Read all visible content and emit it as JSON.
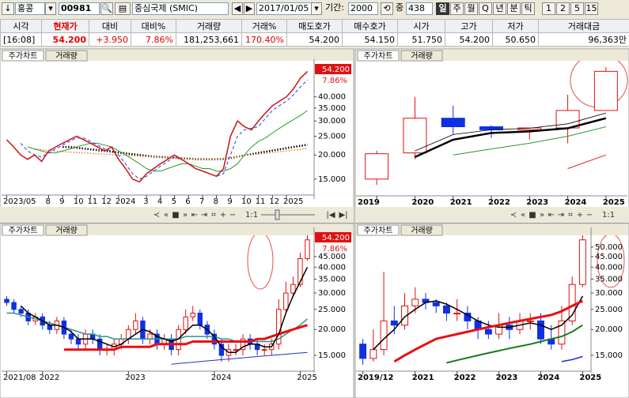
{
  "toolbar": {
    "market": "홍콩",
    "code": "00981",
    "name": "중심국제 (SMIC)",
    "date": "2017/01/05",
    "period_label": "기간:",
    "period": "2000",
    "zoom_label": "중",
    "zoom": "438",
    "intervals": [
      "일",
      "주",
      "월",
      "Q",
      "년",
      "분",
      "틱",
      "1",
      "2",
      "5",
      "15"
    ]
  },
  "quote": {
    "headers": [
      "시각",
      "현재가",
      "대비",
      "대비%",
      "거래량",
      "거래%",
      "매도호가",
      "매수호가",
      "시가",
      "고가",
      "저가",
      "거래대금"
    ],
    "values": [
      "[16:08]",
      "54.200",
      "+3.950",
      "7.86%",
      "181,253,661",
      "170.40%",
      "54.200",
      "54.150",
      "51.750",
      "54.200",
      "50.650",
      "96,363만"
    ]
  },
  "panels": [
    {
      "tabs": [
        "주가차트",
        "거래량"
      ],
      "scale_label": "1:1"
    },
    {
      "tabs": [
        "주가차트",
        "거래량"
      ],
      "scale_label": "1:1"
    },
    {
      "tabs": [
        "주가차트",
        "거래량"
      ]
    },
    {
      "tabs": [
        "주가차트",
        "거래량"
      ]
    }
  ],
  "chart_data": [
    {
      "type": "line",
      "log": true,
      "annotations": [
        "54.200",
        "7.86%"
      ],
      "categories": [
        "2023/05",
        null,
        null,
        null,
        null,
        null,
        "8",
        null,
        "9",
        null,
        "10",
        null,
        "11",
        null,
        "12",
        null,
        "2024",
        null,
        null,
        null,
        "3",
        null,
        "4",
        null,
        "5",
        null,
        "6",
        null,
        "7",
        null,
        "8",
        null,
        "9",
        null,
        "10",
        null,
        "11",
        null,
        "12",
        null,
        "2025",
        null,
        null,
        null
      ],
      "ylim": [
        13,
        57
      ],
      "yticks": [
        {
          "value": 15,
          "label": "15.000"
        },
        {
          "value": 20,
          "label": "20.000"
        },
        {
          "value": 25,
          "label": "25.000"
        },
        {
          "value": 30,
          "label": "30.000"
        },
        {
          "value": 35,
          "label": "35.000"
        },
        {
          "value": 40,
          "label": "40.000"
        }
      ],
      "series": [
        {
          "color": "#000000",
          "style": "dot",
          "width": 2.5,
          "values": [
            null,
            null,
            null,
            null,
            null,
            null,
            null,
            null,
            22,
            22,
            21.8,
            21.6,
            21.4,
            21.2,
            21,
            20.8,
            20.6,
            20.4,
            20.2,
            20,
            19.8,
            19.6,
            19.5,
            19.4,
            19.3,
            19.2,
            19.1,
            19,
            19,
            19,
            19,
            19.1,
            19.3,
            19.6,
            19.9,
            20.2,
            20.5,
            20.8,
            21.1,
            21.4,
            21.7,
            22,
            22.3,
            22.6
          ]
        },
        {
          "color": "#f08020",
          "style": "dot",
          "width": 1.5,
          "values": [
            null,
            null,
            null,
            null,
            21.5,
            21.3,
            21.1,
            20.9,
            20.8,
            20.7,
            20.6,
            20.5,
            20.4,
            20.3,
            20.2,
            20.1,
            20,
            19.9,
            19.8,
            19.7,
            19.6,
            19.5,
            19.4,
            19.3,
            19.2,
            19.1,
            19,
            19,
            19,
            19,
            19,
            19.2,
            19.4,
            19.6,
            19.8,
            20,
            20.2,
            20.4,
            20.6,
            20.8,
            21,
            21.2,
            21.4,
            21.6
          ]
        },
        {
          "color": "#2a9a2a",
          "style": "solid",
          "width": 1,
          "values": [
            null,
            null,
            null,
            22,
            21.5,
            21,
            20.5,
            20.5,
            21,
            21.5,
            22,
            22.5,
            23,
            23,
            22.5,
            22,
            21,
            20,
            19,
            18,
            17,
            16.5,
            16.5,
            17,
            17.5,
            18,
            18,
            17.5,
            17,
            17,
            16.5,
            16.5,
            17,
            18,
            20,
            22,
            23.5,
            24.5,
            26,
            27.5,
            29,
            30.5,
            32,
            34
          ]
        },
        {
          "color": "#2040e0",
          "style": "dash",
          "width": 1,
          "values": [
            null,
            null,
            23,
            21,
            20,
            19.5,
            20.5,
            21.5,
            22.5,
            23.5,
            24.5,
            24.5,
            23.5,
            22.5,
            21.5,
            21,
            20,
            18,
            16,
            15,
            15.5,
            16.5,
            17.5,
            18.5,
            19.5,
            19,
            18,
            17,
            16.5,
            16,
            15.5,
            16,
            20,
            25,
            27,
            27.5,
            28,
            31,
            34,
            36,
            38,
            41,
            45,
            49
          ]
        },
        {
          "color": "#d01010",
          "style": "solid",
          "width": 1.5,
          "values": [
            24,
            22,
            20,
            19,
            20,
            18.5,
            21,
            22,
            23,
            24,
            25,
            24,
            23,
            22,
            21,
            22,
            19,
            17,
            15,
            14.5,
            16,
            17,
            18,
            19,
            20,
            19,
            18,
            17,
            16.5,
            16,
            15.5,
            17,
            25,
            30,
            28,
            27,
            30,
            33,
            36,
            38,
            40,
            44,
            50,
            54.2
          ]
        }
      ]
    },
    {
      "type": "candlestick",
      "log": true,
      "categories": [
        "2019",
        "2020",
        "2021",
        "2022",
        "2023",
        "2024",
        "2025"
      ],
      "ylim": [
        13,
        57
      ],
      "open": [
        15,
        20.5,
        31,
        28,
        27,
        27.6,
        34
      ],
      "high": [
        21,
        40,
        36,
        28.5,
        27.5,
        41,
        57
      ],
      "low": [
        14,
        19,
        25.5,
        24.5,
        24,
        23,
        34
      ],
      "close": [
        20.3,
        31,
        28,
        27,
        27.6,
        34,
        54.2
      ],
      "series": [
        {
          "color": "#000000",
          "style": "solid",
          "width": 2.5,
          "values": [
            null,
            19.5,
            24,
            26,
            26.5,
            27.5,
            31
          ]
        },
        {
          "color": "#000000",
          "style": "solid",
          "width": 0.8,
          "values": [
            null,
            21,
            25.5,
            27,
            27.5,
            29,
            33
          ]
        },
        {
          "color": "#2a9a2a",
          "style": "solid",
          "width": 1,
          "values": [
            null,
            null,
            20,
            21.5,
            23,
            25,
            28
          ]
        },
        {
          "color": "#e02020",
          "style": "solid",
          "width": 1,
          "values": [
            null,
            null,
            null,
            null,
            null,
            17,
            20
          ]
        }
      ]
    },
    {
      "type": "candlestick",
      "log": true,
      "annotations": [
        "54.200",
        "7.86%"
      ],
      "categories": [
        "2021/08",
        null,
        null,
        null,
        null,
        "2022",
        null,
        null,
        null,
        null,
        null,
        null,
        null,
        null,
        null,
        null,
        null,
        "2023",
        null,
        null,
        null,
        null,
        null,
        null,
        null,
        null,
        null,
        null,
        null,
        "2024",
        null,
        null,
        null,
        null,
        null,
        null,
        null,
        null,
        null,
        null,
        null,
        "2025",
        null
      ],
      "ylim": [
        13.5,
        57
      ],
      "yticks": [
        {
          "value": 15,
          "label": "15.000"
        },
        {
          "value": 20,
          "label": "20.000"
        },
        {
          "value": 25,
          "label": "25.000"
        },
        {
          "value": 30,
          "label": "30.000"
        },
        {
          "value": 35,
          "label": "35.000"
        },
        {
          "value": 40,
          "label": "40.000"
        },
        {
          "value": 45,
          "label": "45.000"
        }
      ],
      "open": [
        28,
        27,
        25,
        24,
        22,
        23,
        21,
        20,
        22,
        19,
        18,
        17,
        19,
        18,
        16,
        16,
        17,
        18,
        20,
        22,
        18,
        19,
        17,
        18,
        16,
        20,
        23,
        24,
        21,
        19,
        17,
        15,
        16,
        16,
        18,
        17,
        16,
        16,
        17,
        25,
        30,
        33,
        44
      ],
      "high": [
        29,
        28,
        26,
        25,
        24,
        24,
        22,
        23,
        23,
        20,
        19,
        20,
        20,
        19,
        17,
        18,
        19,
        21,
        24,
        23,
        20,
        20,
        19,
        19,
        21,
        25,
        26,
        25,
        22,
        20,
        18,
        17,
        17,
        19,
        19,
        18,
        17,
        18,
        28,
        34,
        36,
        47,
        57
      ],
      "low": [
        26,
        24,
        23,
        21,
        21,
        20,
        19,
        19,
        18,
        17,
        16,
        16,
        17,
        15,
        15,
        15,
        16,
        17,
        19,
        17,
        17,
        16,
        16,
        15,
        15,
        19,
        22,
        20,
        18,
        16,
        14,
        14,
        15,
        15,
        16,
        15,
        15,
        15,
        16,
        24,
        29,
        32,
        43
      ],
      "close": [
        27,
        25,
        24,
        22,
        23,
        21,
        20,
        22,
        19,
        18,
        17,
        19,
        18,
        16,
        16,
        17,
        18,
        20,
        22,
        18,
        19,
        17,
        18,
        16,
        20,
        23,
        24,
        21,
        19,
        17,
        15,
        16,
        16,
        18,
        17,
        16,
        16,
        17,
        25,
        30,
        33,
        44,
        54.2
      ],
      "series": [
        {
          "color": "#2a9090",
          "style": "solid",
          "width": 1.5,
          "values": [
            24,
            24,
            23.5,
            23,
            22.5,
            22,
            21.5,
            21,
            20.5,
            20,
            19.5,
            19,
            19,
            18.5,
            18.5,
            18,
            18,
            18,
            18,
            18,
            18,
            18,
            18,
            18,
            18,
            18.5,
            18.5,
            18.5,
            18.5,
            18.5,
            18,
            18,
            17.5,
            17.5,
            17.5,
            17.5,
            17.5,
            17.5,
            18,
            19,
            20,
            21,
            22.5
          ]
        },
        {
          "color": "#e81010",
          "style": "solid",
          "width": 3,
          "values": [
            null,
            null,
            null,
            null,
            null,
            null,
            null,
            null,
            16,
            16,
            16,
            16,
            16,
            16,
            16,
            16,
            16.5,
            16.5,
            16.5,
            16.5,
            16.5,
            17,
            17,
            17,
            17,
            17,
            17.5,
            17.5,
            17.5,
            17.5,
            17.5,
            17.5,
            17.5,
            17.5,
            17.5,
            18,
            18,
            18.5,
            19,
            19.5,
            20,
            20.5,
            21
          ]
        },
        {
          "color": "#000000",
          "style": "solid",
          "width": 1.5,
          "values": [
            null,
            null,
            26,
            24,
            23,
            22,
            21,
            21,
            20.5,
            19.5,
            18,
            18,
            18,
            17.5,
            17,
            16.5,
            17,
            18,
            19,
            20,
            19.5,
            18.5,
            18,
            17.5,
            18,
            19.5,
            21,
            21,
            20,
            18.5,
            16.5,
            15.5,
            15.5,
            16.5,
            17,
            17,
            16.5,
            16.5,
            19,
            24,
            29,
            34,
            40
          ]
        },
        {
          "color": "#2030d0",
          "style": "solid",
          "width": 1,
          "values": [
            null,
            null,
            null,
            null,
            null,
            null,
            null,
            null,
            null,
            null,
            null,
            null,
            null,
            null,
            null,
            null,
            null,
            null,
            null,
            null,
            null,
            null,
            null,
            13.6,
            13.7,
            13.8,
            13.9,
            14,
            14.1,
            14.2,
            14.3,
            14.4,
            14.5,
            14.6,
            14.7,
            14.8,
            14.9,
            15,
            15.1,
            15.2,
            15.3,
            15.4,
            15.5
          ]
        }
      ]
    },
    {
      "type": "candlestick",
      "log": true,
      "categories": [
        "2019/12",
        null,
        null,
        null,
        null,
        "2021",
        null,
        null,
        null,
        "2022",
        null,
        null,
        null,
        "2023",
        null,
        null,
        null,
        "2024",
        null,
        null,
        null,
        "2025"
      ],
      "ylim": [
        13.5,
        57
      ],
      "yticks": [
        {
          "value": 15,
          "label": "15.000"
        },
        {
          "value": 20,
          "label": "20.000"
        },
        {
          "value": 25,
          "label": "25.000"
        },
        {
          "value": 30,
          "label": "30.000"
        },
        {
          "value": 35,
          "label": "35.000"
        },
        {
          "value": 40,
          "label": "40.000"
        },
        {
          "value": 45,
          "label": "45.000"
        },
        {
          "value": 50,
          "label": "50.000"
        }
      ],
      "open": [
        17,
        14.5,
        16,
        22,
        21,
        26,
        28,
        27,
        26,
        24,
        24,
        22,
        20,
        19,
        21,
        20,
        22,
        22,
        18,
        17,
        22,
        33
      ],
      "high": [
        18,
        20,
        38,
        26,
        30,
        32,
        30,
        28,
        27,
        28,
        26,
        23,
        22,
        24,
        23,
        24,
        24,
        24,
        21,
        26,
        36,
        57
      ],
      "low": [
        13.5,
        14,
        15,
        19,
        20,
        24,
        25,
        24,
        22,
        22,
        20,
        18,
        18,
        18,
        18,
        19,
        20,
        17,
        16,
        16,
        21,
        32
      ],
      "close": [
        14.5,
        16,
        22,
        21,
        26,
        28,
        27,
        26,
        24,
        24,
        22,
        20,
        19,
        21,
        20,
        22,
        22,
        18,
        17,
        22,
        33,
        54.2
      ],
      "series": [
        {
          "color": "#000000",
          "style": "solid",
          "width": 1.5,
          "values": [
            null,
            16,
            18,
            20,
            23,
            25,
            27,
            27.5,
            26.5,
            25,
            23.5,
            22,
            21,
            20.5,
            20.5,
            21,
            21.5,
            21,
            20,
            21,
            23.5,
            29
          ]
        },
        {
          "color": "#e81010",
          "style": "solid",
          "width": 3,
          "values": [
            null,
            null,
            null,
            14,
            15,
            16,
            17,
            18,
            18.5,
            19,
            19.5,
            20,
            20.5,
            21,
            21.5,
            22,
            22.5,
            23,
            23.5,
            24.5,
            26,
            27.5
          ]
        },
        {
          "color": "#1a7a1a",
          "style": "solid",
          "width": 2,
          "values": [
            null,
            null,
            null,
            null,
            null,
            null,
            null,
            null,
            13.8,
            14.2,
            14.6,
            15,
            15.4,
            15.8,
            16.2,
            16.6,
            17,
            17.5,
            18,
            18.5,
            19.5,
            21
          ]
        },
        {
          "color": "#2030d0",
          "style": "solid",
          "width": 1.5,
          "values": [
            null,
            null,
            null,
            null,
            null,
            null,
            null,
            null,
            null,
            null,
            null,
            null,
            null,
            null,
            null,
            null,
            null,
            null,
            null,
            14,
            14.3,
            14.8
          ]
        }
      ]
    }
  ]
}
